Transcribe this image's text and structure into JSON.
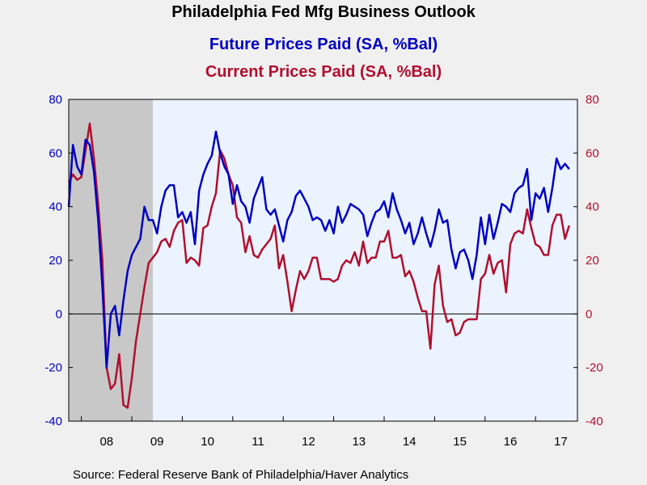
{
  "chart_data": {
    "type": "line",
    "title": "Philadelphia Fed Mfg Business Outlook",
    "series": [
      {
        "name": "Future Prices Paid (SA, %Bal)",
        "color": "#0000c0",
        "axis": "left",
        "x_start": "2007-10",
        "values": [
          40,
          63,
          55,
          52,
          65,
          63,
          53,
          35,
          10,
          -20,
          0,
          3,
          -8,
          5,
          16,
          22,
          25,
          28,
          40,
          35,
          35,
          30,
          40,
          46,
          48,
          48,
          36,
          38,
          34,
          38,
          26,
          46,
          52,
          56,
          59,
          68,
          60,
          55,
          52,
          41,
          48,
          42,
          40,
          34,
          43,
          47,
          51,
          39,
          37,
          39,
          33,
          27,
          35,
          38,
          44,
          46,
          43,
          40,
          35,
          36,
          35,
          31,
          35,
          30,
          40,
          34,
          37,
          41,
          40,
          39,
          37,
          29,
          34,
          38,
          39,
          42,
          36,
          45,
          39,
          35,
          30,
          34,
          26,
          30,
          36,
          30,
          25,
          31,
          39,
          34,
          35,
          24,
          17,
          23,
          24,
          20,
          13,
          22,
          36,
          26,
          37,
          28,
          34,
          41,
          40,
          38,
          45,
          47,
          48,
          54,
          35,
          45,
          43,
          47,
          38,
          47,
          58,
          54,
          56,
          54
        ]
      },
      {
        "name": "Current Prices Paid (SA, %Bal)",
        "color": "#b0102f",
        "axis": "right",
        "x_start": "2007-10",
        "values": [
          49,
          52,
          50,
          51,
          61,
          71,
          58,
          41,
          20,
          -20,
          -28,
          -26,
          -15,
          -34,
          -35,
          -24,
          -10,
          0,
          10,
          19,
          21,
          23,
          27,
          28,
          25,
          31,
          34,
          35,
          19,
          21,
          20,
          18,
          32,
          33,
          40,
          45,
          61,
          58,
          52,
          48,
          36,
          34,
          23,
          29,
          22,
          21,
          24,
          26,
          28,
          33,
          17,
          22,
          12,
          1,
          9,
          16,
          13,
          16,
          21,
          21,
          13,
          13,
          13,
          12,
          13,
          18,
          20,
          19,
          23,
          18,
          27,
          19,
          21,
          21,
          27,
          27,
          31,
          21,
          21,
          22,
          14,
          16,
          12,
          6,
          1,
          1,
          -13,
          11,
          18,
          3,
          -3,
          -2,
          -8,
          -7,
          -3,
          -2,
          -2,
          -2,
          13,
          15,
          22,
          15,
          19,
          20,
          8,
          26,
          30,
          31,
          30,
          39,
          32,
          26,
          25,
          22,
          22,
          33,
          37,
          37,
          28,
          33
        ]
      }
    ],
    "x_ticks": [
      "08",
      "09",
      "10",
      "11",
      "12",
      "13",
      "14",
      "15",
      "16",
      "17"
    ],
    "y_left": {
      "min": -40,
      "max": 80,
      "ticks": [
        "80",
        "60",
        "40",
        "20",
        "0",
        "-20",
        "-40"
      ]
    },
    "y_right": {
      "min": -40,
      "max": 80,
      "ticks": [
        "80",
        "60",
        "40",
        "20",
        "0",
        "-20",
        "-40"
      ]
    },
    "recession_shading": {
      "start": "2007-12",
      "end": "2009-06",
      "color": "#c8c8c8"
    },
    "zero_line": true,
    "grid": false,
    "plot_background": "#ebf3ff",
    "page_background": "#f0f0f0"
  },
  "labels": {
    "title": "Philadelphia Fed Mfg Business Outlook",
    "series1": "Future Prices Paid (SA, %Bal)",
    "series2": "Current Prices Paid (SA, %Bal)",
    "source": "Source:  Federal Reserve Bank of Philadelphia/Haver Analytics"
  }
}
